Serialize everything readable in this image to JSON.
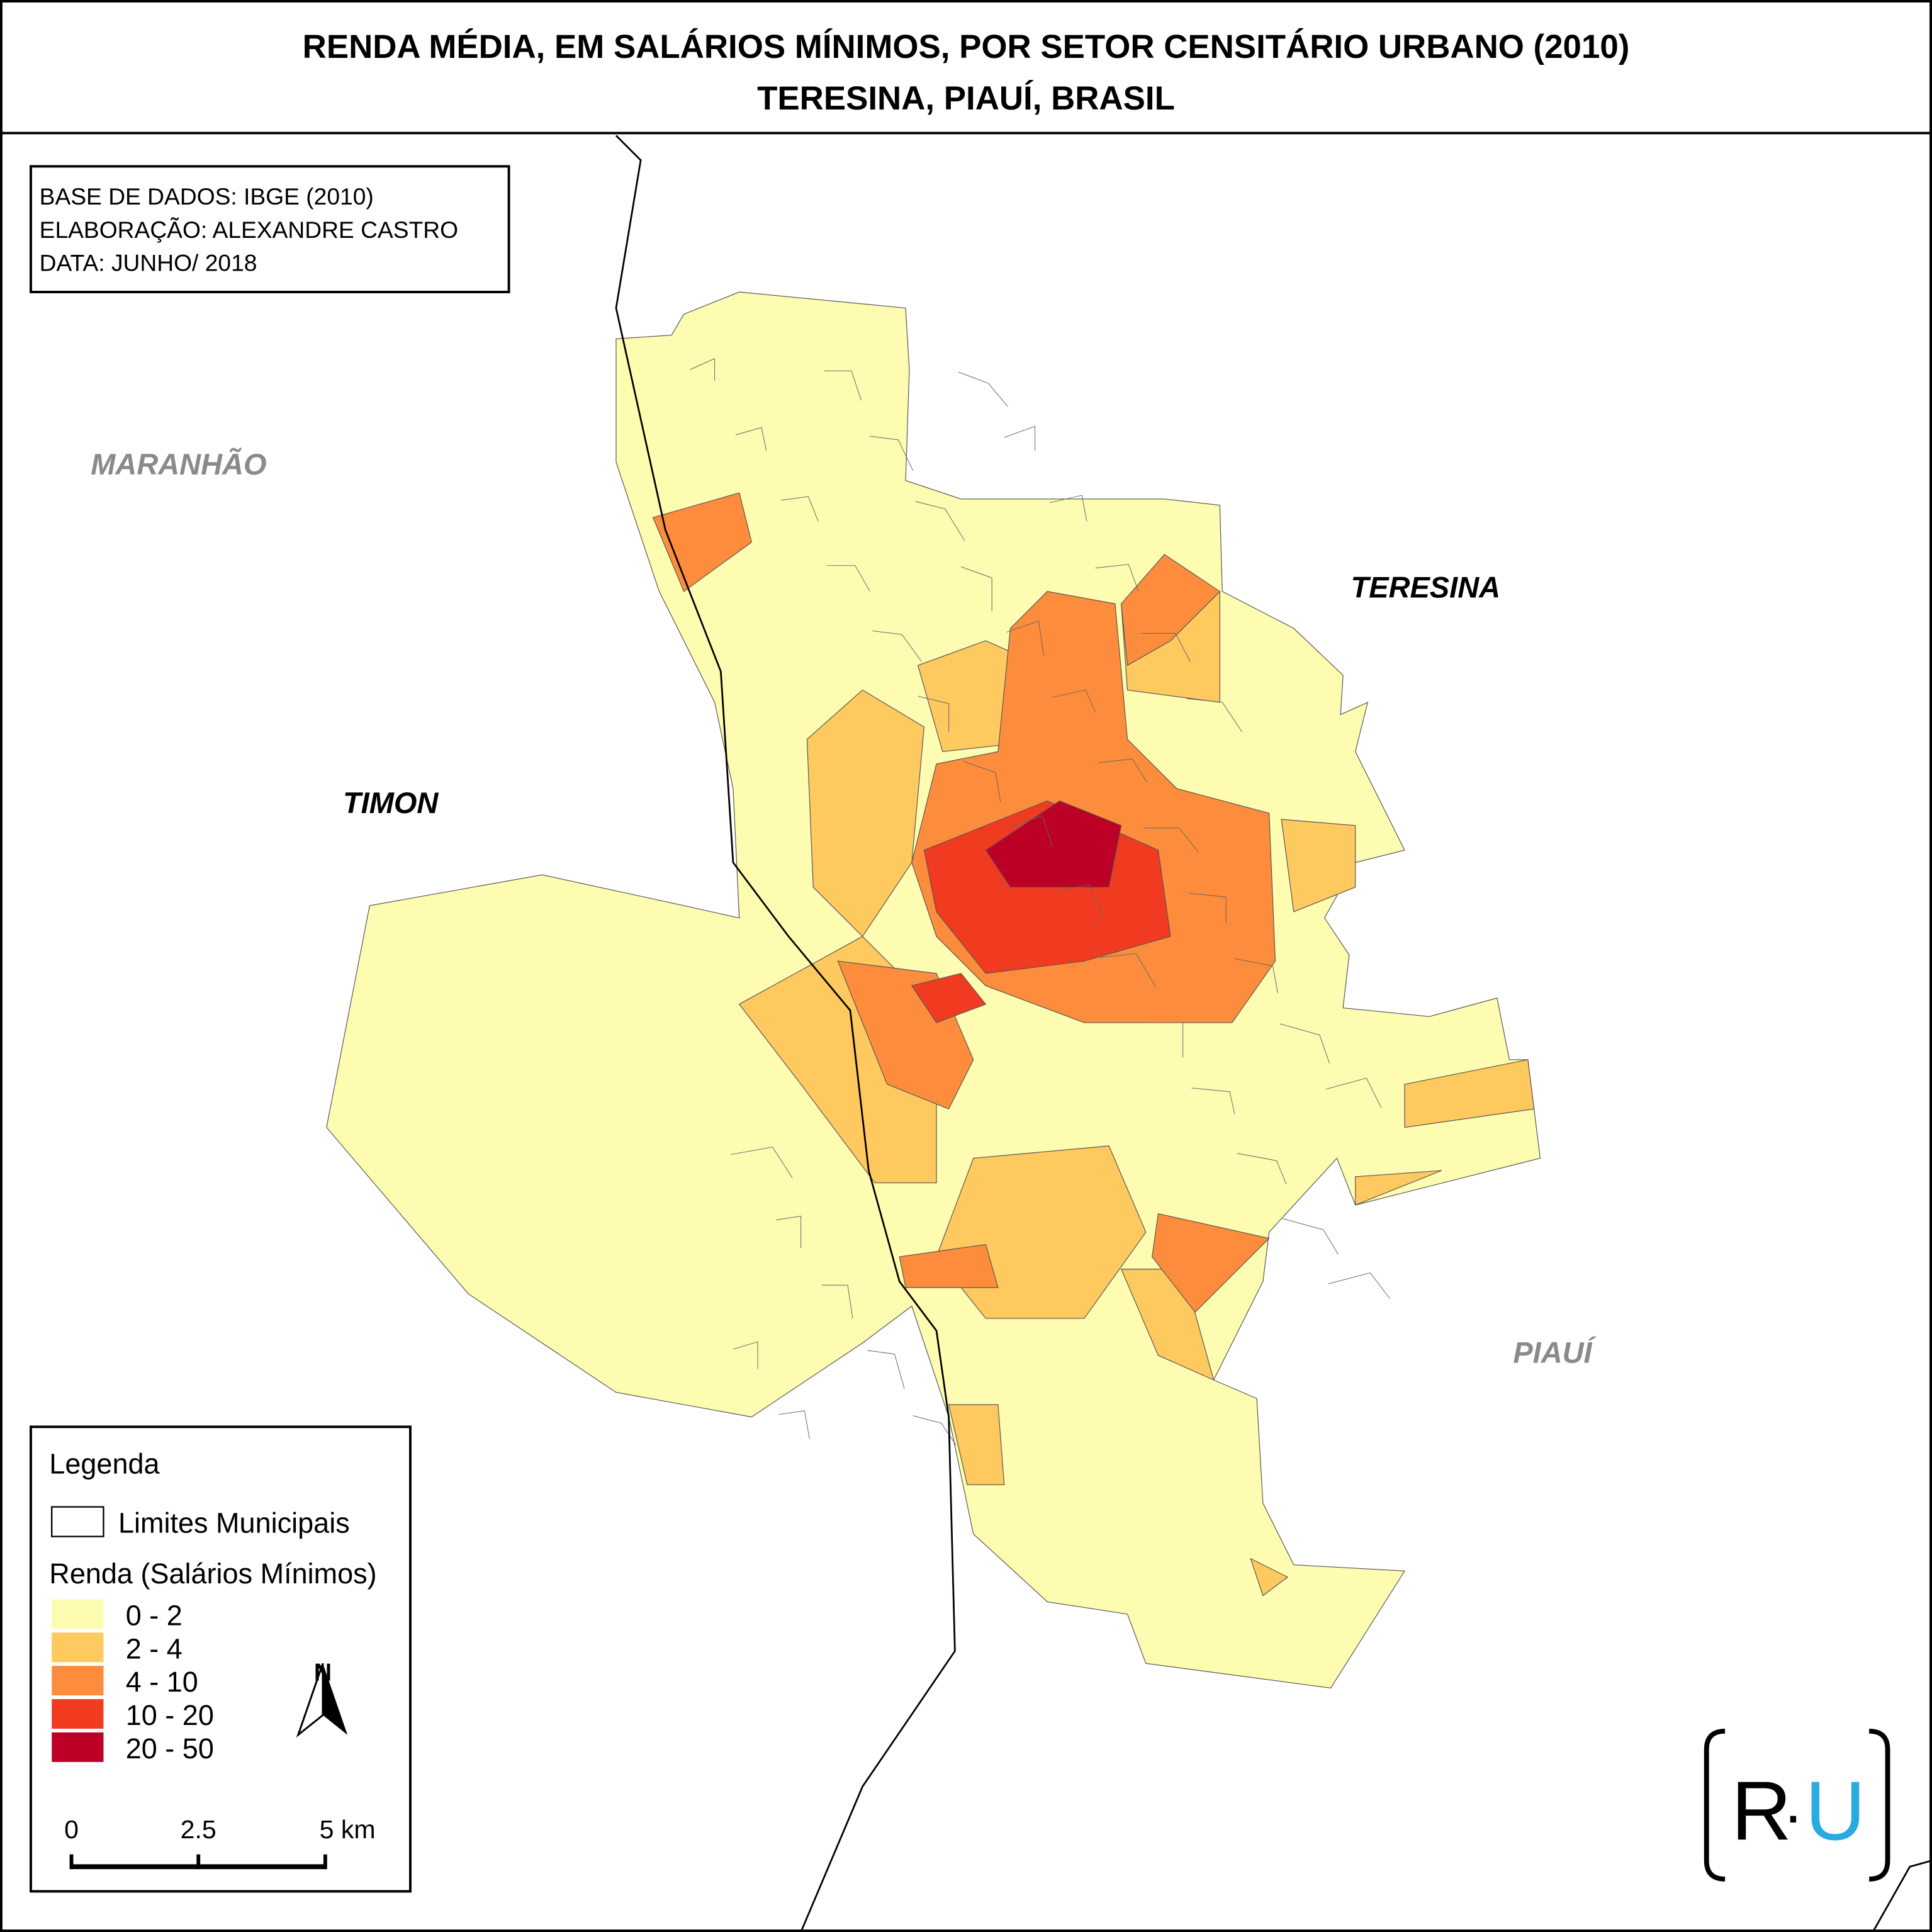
{
  "header": {
    "title_line1": "RENDA MÉDIA, EM SALÁRIOS MÍNIMOS, POR SETOR CENSITÁRIO URBANO (2010)",
    "title_line2": "TERESINA, PIAUÍ, BRASIL"
  },
  "credits": [
    "BASE DE DADOS: IBGE (2010)",
    "ELABORAÇÃO: ALEXANDRE CASTRO",
    "DATA: JUNHO/ 2018"
  ],
  "map_labels": {
    "maranhao": "MARANHÃO",
    "teresina": "TERESINA",
    "timon": "TIMON",
    "piaui": "PIAUÍ"
  },
  "legend": {
    "title": "Legenda",
    "boundary": "Limites Municipais",
    "renda_title": "Renda (Salários Mínimos)",
    "classes": [
      {
        "label": "0 - 2",
        "color": "#fdfcb1"
      },
      {
        "label": "2 - 4",
        "color": "#fec95f"
      },
      {
        "label": "4 - 10",
        "color": "#fd8d3c"
      },
      {
        "label": "10 - 20",
        "color": "#f03b20"
      },
      {
        "label": "20 - 50",
        "color": "#bd0026"
      }
    ]
  },
  "scale_bar": {
    "labels": [
      "0",
      "2.5",
      "5 km"
    ]
  },
  "north_label": "N",
  "logo": {
    "left": "R",
    "dot": "·",
    "right": "U"
  }
}
